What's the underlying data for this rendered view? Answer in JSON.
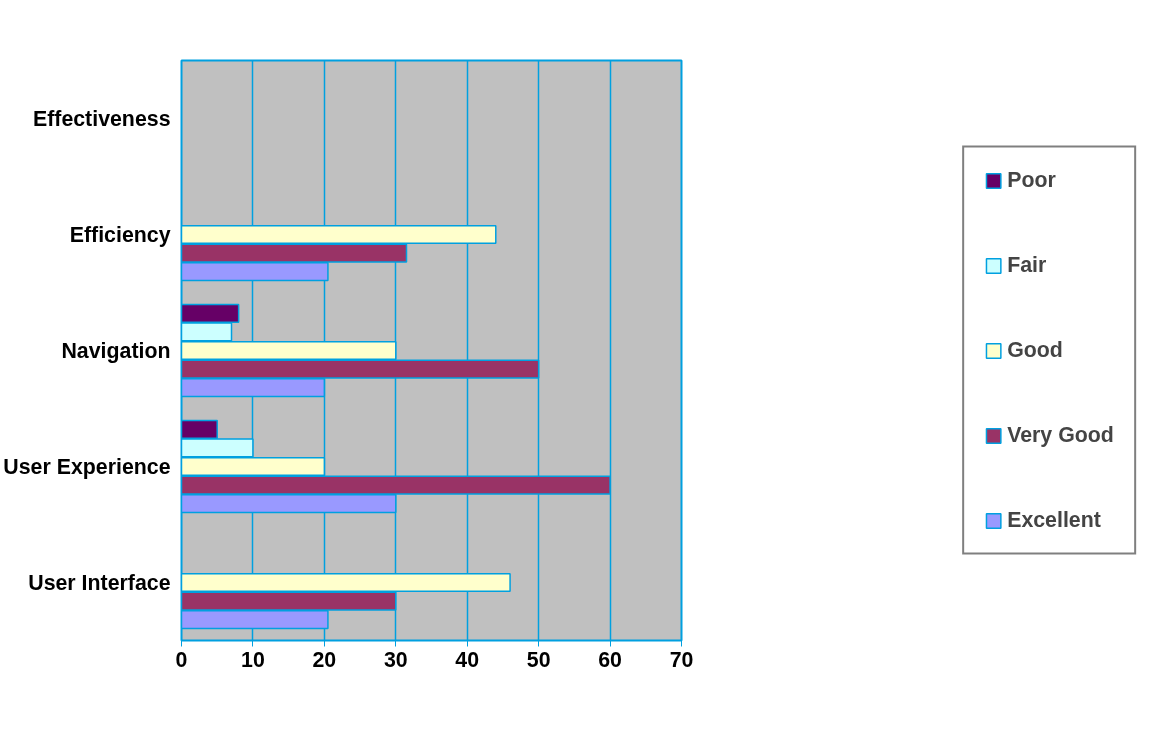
{
  "chart_data": {
    "type": "bar",
    "orientation": "horizontal",
    "categories": [
      "Effectiveness",
      "Efficiency",
      "Navigation",
      "User Experience",
      "User Interface"
    ],
    "series": [
      {
        "name": "Poor",
        "color": "#660066",
        "values": [
          null,
          null,
          8,
          5,
          null
        ]
      },
      {
        "name": "Fair",
        "color": "#ccffff",
        "values": [
          null,
          null,
          7,
          10,
          null
        ]
      },
      {
        "name": "Good",
        "color": "#ffffcc",
        "values": [
          null,
          44,
          30,
          20,
          46
        ]
      },
      {
        "name": "Very Good",
        "color": "#993366",
        "values": [
          null,
          31.5,
          50,
          60,
          30
        ]
      },
      {
        "name": "Excellent",
        "color": "#9999ff",
        "values": [
          null,
          20.5,
          20,
          30,
          20.5
        ]
      }
    ],
    "xlim": [
      0,
      70
    ],
    "xticks": [
      0,
      10,
      20,
      30,
      40,
      50,
      60,
      70
    ],
    "grid": "x",
    "legend": "right"
  }
}
